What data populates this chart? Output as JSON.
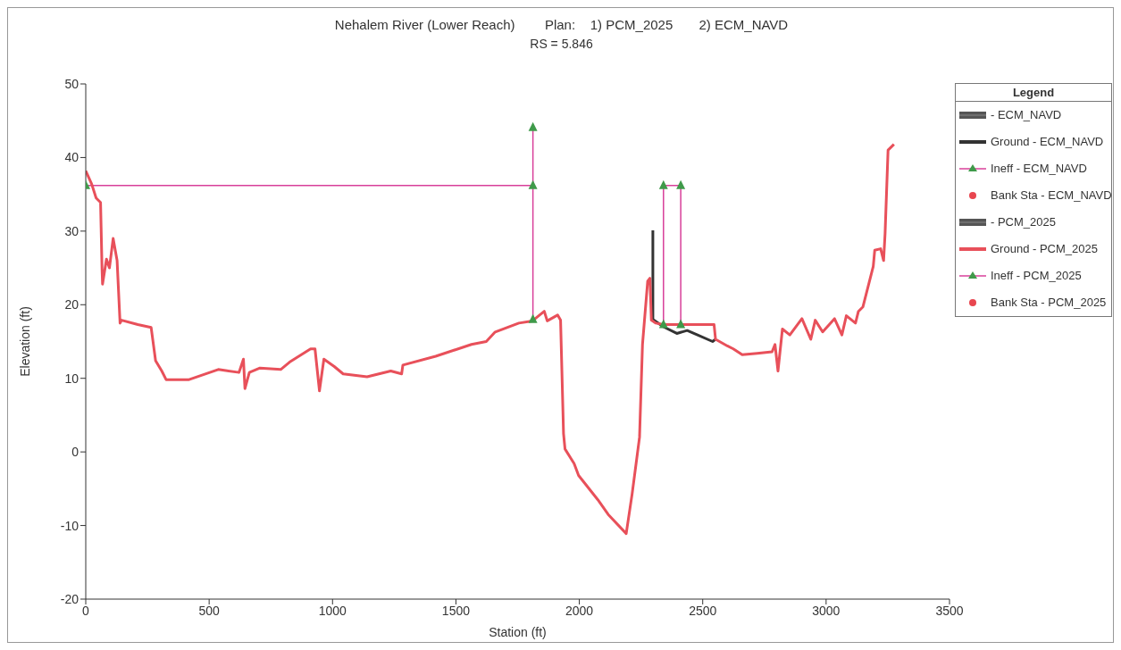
{
  "chart_data": {
    "type": "line",
    "title": "Nehalem River (Lower Reach)        Plan:    1) PCM_2025       2) ECM_NAVD",
    "subtitle": "RS = 5.846",
    "xlabel": "Station (ft)",
    "ylabel": "Elevation (ft)",
    "legend_title": "Legend",
    "xlim": [
      0,
      3500
    ],
    "xticks": [
      0,
      500,
      1000,
      1500,
      2000,
      2500,
      3000,
      3500
    ],
    "ylim": [
      -20,
      50
    ],
    "yticks": [
      -20,
      -10,
      0,
      10,
      20,
      30,
      40,
      50
    ],
    "grid": false,
    "legend": "right",
    "series": [
      {
        "name": "- ECM_NAVD",
        "color": "#555555",
        "marker": "none"
      },
      {
        "name": "Ground - ECM_NAVD",
        "color": "#333333",
        "marker": "none",
        "x": [
          2298,
          2298,
          2341,
          2395,
          2437,
          2479,
          2540,
          2552
        ],
        "values": [
          30.1,
          18.0,
          17.0,
          16.1,
          16.5,
          15.9,
          15.0,
          15.3
        ]
      },
      {
        "name": "Ineff - ECM_NAVD",
        "color": "#d8409a",
        "marker": "triangle",
        "x": [
          0,
          1812,
          1812,
          1812
        ],
        "values": [
          36.2,
          36.2,
          44.1,
          18.0
        ]
      },
      {
        "name": "Bank Sta - ECM_NAVD",
        "type": "scatter",
        "color": "#e8464f",
        "marker": "circle"
      },
      {
        "name": "- PCM_2025",
        "color": "#555555",
        "marker": "none"
      },
      {
        "name": "Ground - PCM_2025",
        "color": "#e8505a",
        "marker": "none",
        "x": [
          0,
          24,
          42,
          60,
          66,
          68,
          84,
          96,
          111,
          127,
          139,
          145,
          211,
          265,
          283,
          308,
          326,
          416,
          537,
          621,
          639,
          645,
          663,
          706,
          790,
          826,
          911,
          929,
          947,
          965,
          1007,
          1043,
          1140,
          1236,
          1280,
          1285,
          1418,
          1563,
          1623,
          1659,
          1755,
          1810,
          1858,
          1870,
          1912,
          1924,
          1936,
          1942,
          1979,
          1997,
          2075,
          2117,
          2190,
          2214,
          2244,
          2256,
          2277,
          2286,
          2292,
          2310,
          2341,
          2546,
          2552,
          2600,
          2624,
          2660,
          2721,
          2781,
          2793,
          2805,
          2823,
          2853,
          2902,
          2938,
          2956,
          2986,
          3034,
          3064,
          3082,
          3119,
          3131,
          3149,
          3191,
          3197,
          3221,
          3233,
          3239,
          3251,
          3275
        ],
        "values": [
          38.2,
          36.4,
          34.5,
          33.9,
          24.8,
          22.8,
          26.2,
          25.0,
          29.0,
          26.0,
          17.5,
          17.9,
          17.3,
          16.9,
          12.4,
          11.0,
          9.8,
          9.8,
          11.2,
          10.8,
          12.6,
          8.6,
          10.8,
          11.4,
          11.2,
          12.2,
          14.0,
          14.0,
          8.3,
          12.6,
          11.6,
          10.6,
          10.2,
          11.0,
          10.6,
          11.8,
          13.0,
          14.6,
          15.0,
          16.3,
          17.5,
          17.8,
          19.1,
          17.8,
          18.6,
          17.9,
          2.5,
          0.4,
          -1.6,
          -3.2,
          -6.5,
          -8.5,
          -11.1,
          -5.7,
          2.0,
          14.6,
          23.2,
          23.6,
          17.9,
          17.5,
          17.3,
          17.3,
          15.3,
          14.4,
          14.0,
          13.2,
          13.4,
          13.6,
          14.6,
          11.0,
          16.7,
          15.9,
          18.1,
          15.3,
          17.9,
          16.3,
          18.1,
          15.9,
          18.5,
          17.5,
          19.1,
          19.7,
          25.2,
          27.4,
          27.6,
          26.0,
          29.7,
          41.0,
          41.8
        ]
      },
      {
        "name": "Ineff - PCM_2025",
        "color": "#d8409a",
        "marker": "triangle",
        "x": [
          2341,
          2341,
          2411,
          2411
        ],
        "values": [
          17.3,
          36.2,
          36.2,
          17.3
        ]
      },
      {
        "name": "Bank Sta - PCM_2025",
        "type": "scatter",
        "color": "#e8464f",
        "marker": "circle"
      }
    ]
  }
}
